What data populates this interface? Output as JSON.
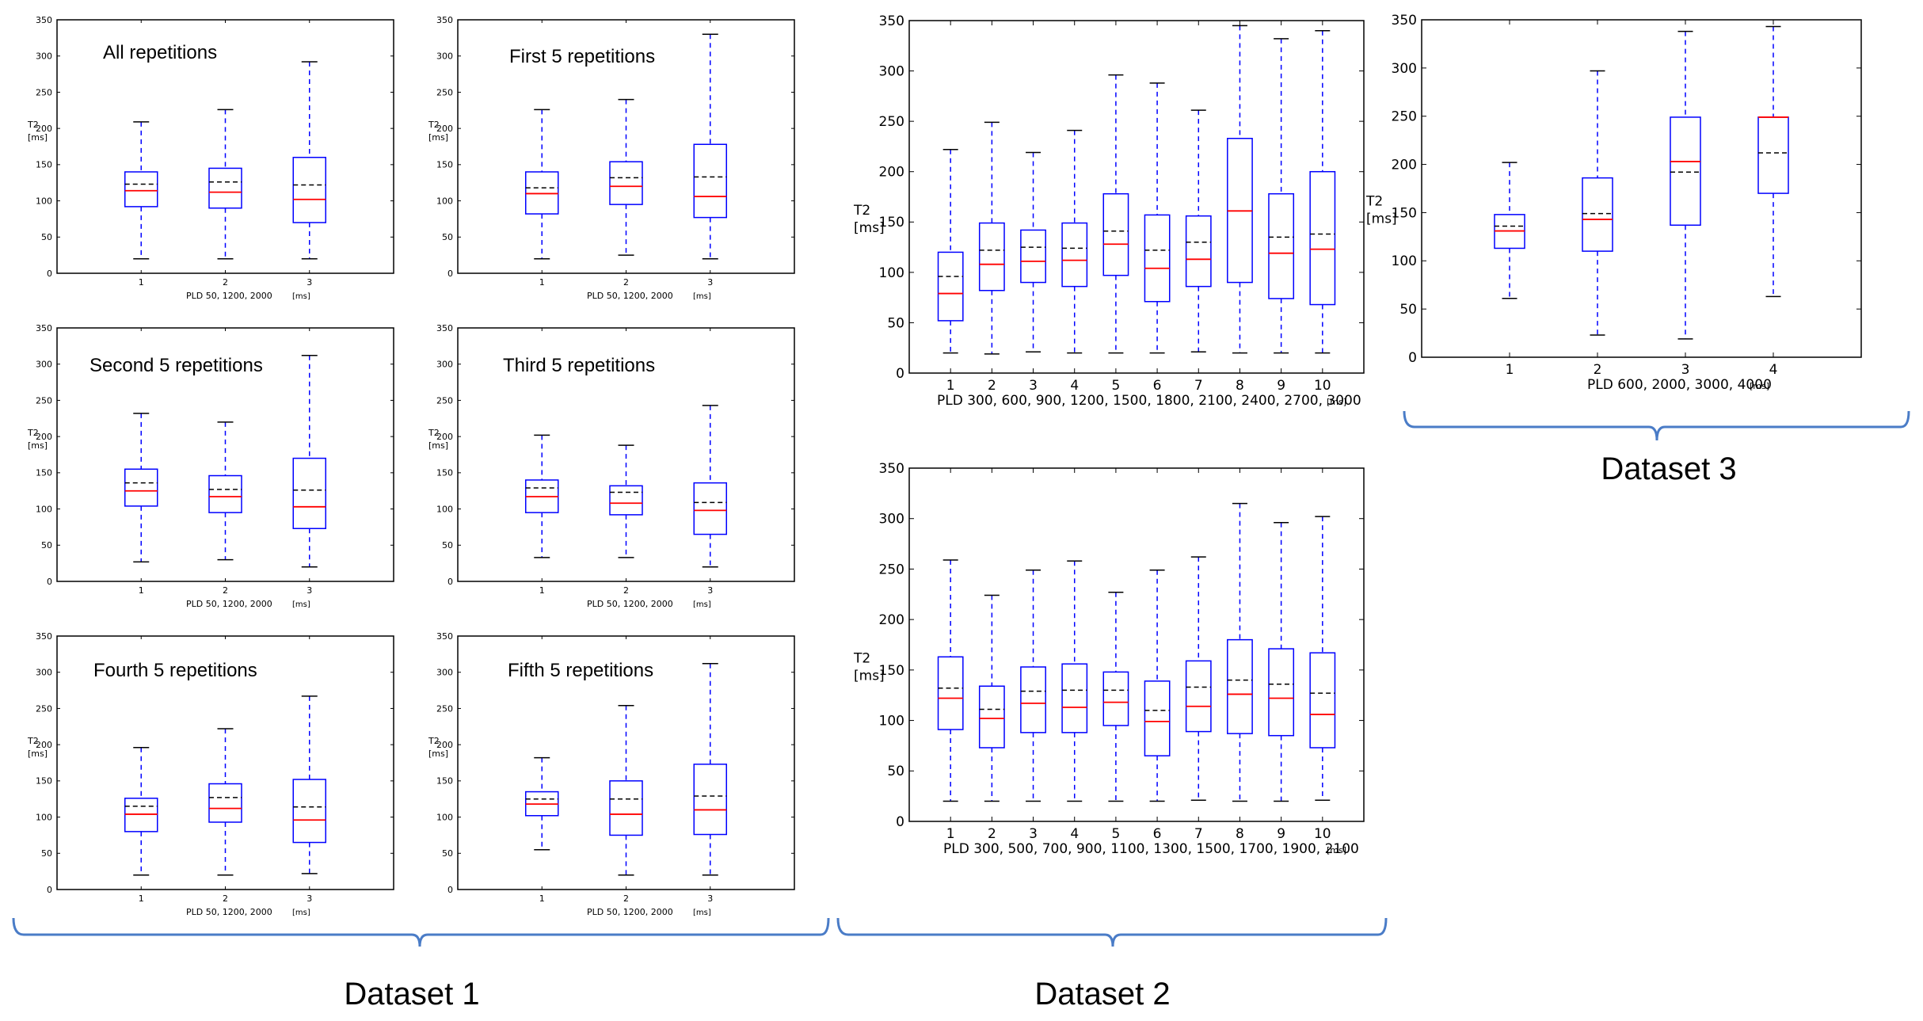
{
  "colors": {
    "box": "#0000ff",
    "whisker": "#0000ff",
    "median": "#ff0000",
    "mean": "#000000",
    "brace": "#4a7cc7",
    "frame": "#000000"
  },
  "dataset_labels": [
    "Dataset 1",
    "Dataset 2",
    "Dataset 3"
  ],
  "chart_data": [
    {
      "id": "d1-all",
      "type": "box",
      "title": "All repetitions",
      "ylabel_line1": "T2",
      "ylabel_line2": "[ms]",
      "xlabel": "PLD 50, 1200, 2000",
      "xunit": "[ms]",
      "ylim": [
        0,
        350
      ],
      "yticks": [
        "0",
        "50",
        "100",
        "150",
        "200",
        "250",
        "300",
        "350"
      ],
      "categories": [
        "1",
        "2",
        "3"
      ],
      "boxes": [
        {
          "low": 20,
          "q1": 92,
          "median": 114,
          "mean": 123,
          "q3": 140,
          "high": 209
        },
        {
          "low": 20,
          "q1": 90,
          "median": 112,
          "mean": 126,
          "q3": 145,
          "high": 226
        },
        {
          "low": 20,
          "q1": 70,
          "median": 102,
          "mean": 122,
          "q3": 160,
          "high": 292
        }
      ]
    },
    {
      "id": "d1-first",
      "type": "box",
      "title": "First 5 repetitions",
      "ylabel_line1": "T2",
      "ylabel_line2": "[ms]",
      "xlabel": "PLD 50, 1200, 2000",
      "xunit": "[ms]",
      "ylim": [
        0,
        350
      ],
      "yticks": [
        "0",
        "50",
        "100",
        "150",
        "200",
        "250",
        "300",
        "350"
      ],
      "categories": [
        "1",
        "2",
        "3"
      ],
      "boxes": [
        {
          "low": 20,
          "q1": 82,
          "median": 110,
          "mean": 118,
          "q3": 140,
          "high": 226
        },
        {
          "low": 25,
          "q1": 95,
          "median": 120,
          "mean": 132,
          "q3": 154,
          "high": 240
        },
        {
          "low": 20,
          "q1": 77,
          "median": 106,
          "mean": 133,
          "q3": 178,
          "high": 330
        }
      ]
    },
    {
      "id": "d1-second",
      "type": "box",
      "title": "Second 5 repetitions",
      "ylabel_line1": "T2",
      "ylabel_line2": "[ms]",
      "xlabel": "PLD 50, 1200, 2000",
      "xunit": "[ms]",
      "ylim": [
        0,
        350
      ],
      "yticks": [
        "0",
        "50",
        "100",
        "150",
        "200",
        "250",
        "300",
        "350"
      ],
      "categories": [
        "1",
        "2",
        "3"
      ],
      "boxes": [
        {
          "low": 27,
          "q1": 104,
          "median": 125,
          "mean": 136,
          "q3": 155,
          "high": 232
        },
        {
          "low": 30,
          "q1": 95,
          "median": 117,
          "mean": 127,
          "q3": 146,
          "high": 220
        },
        {
          "low": 20,
          "q1": 73,
          "median": 103,
          "mean": 126,
          "q3": 170,
          "high": 312
        }
      ]
    },
    {
      "id": "d1-third",
      "type": "box",
      "title": "Third 5 repetitions",
      "ylabel_line1": "T2",
      "ylabel_line2": "[ms]",
      "xlabel": "PLD 50, 1200, 2000",
      "xunit": "[ms]",
      "ylim": [
        0,
        350
      ],
      "yticks": [
        "0",
        "50",
        "100",
        "150",
        "200",
        "250",
        "300",
        "350"
      ],
      "categories": [
        "1",
        "2",
        "3"
      ],
      "boxes": [
        {
          "low": 33,
          "q1": 95,
          "median": 117,
          "mean": 129,
          "q3": 140,
          "high": 202
        },
        {
          "low": 33,
          "q1": 92,
          "median": 108,
          "mean": 123,
          "q3": 132,
          "high": 188
        },
        {
          "low": 20,
          "q1": 65,
          "median": 98,
          "mean": 109,
          "q3": 136,
          "high": 243
        }
      ]
    },
    {
      "id": "d1-fourth",
      "type": "box",
      "title": "Fourth 5 repetitions",
      "ylabel_line1": "T2",
      "ylabel_line2": "[ms]",
      "xlabel": "PLD 50, 1200, 2000",
      "xunit": "[ms]",
      "ylim": [
        0,
        350
      ],
      "yticks": [
        "0",
        "50",
        "100",
        "150",
        "200",
        "250",
        "300",
        "350"
      ],
      "categories": [
        "1",
        "2",
        "3"
      ],
      "boxes": [
        {
          "low": 20,
          "q1": 80,
          "median": 104,
          "mean": 115,
          "q3": 126,
          "high": 196
        },
        {
          "low": 20,
          "q1": 93,
          "median": 112,
          "mean": 127,
          "q3": 146,
          "high": 222
        },
        {
          "low": 22,
          "q1": 65,
          "median": 96,
          "mean": 114,
          "q3": 152,
          "high": 267
        }
      ]
    },
    {
      "id": "d1-fifth",
      "type": "box",
      "title": "Fifth 5 repetitions",
      "ylabel_line1": "T2",
      "ylabel_line2": "[ms]",
      "xlabel": "PLD 50, 1200, 2000",
      "xunit": "[ms]",
      "ylim": [
        0,
        350
      ],
      "yticks": [
        "0",
        "50",
        "100",
        "150",
        "200",
        "250",
        "300",
        "350"
      ],
      "categories": [
        "1",
        "2",
        "3"
      ],
      "boxes": [
        {
          "low": 55,
          "q1": 102,
          "median": 118,
          "mean": 125,
          "q3": 135,
          "high": 182
        },
        {
          "low": 20,
          "q1": 75,
          "median": 104,
          "mean": 125,
          "q3": 150,
          "high": 254
        },
        {
          "low": 20,
          "q1": 76,
          "median": 110,
          "mean": 129,
          "q3": 173,
          "high": 312
        }
      ]
    },
    {
      "id": "d2-top",
      "type": "box",
      "title": "",
      "ylabel_line1": "T2",
      "ylabel_line2": "[ms]",
      "xlabel": "PLD 300, 600, 900, 1200, 1500, 1800, 2100, 2400, 2700, 3000",
      "xunit": "[ms]",
      "ylim": [
        0,
        350
      ],
      "yticks": [
        "0",
        "50",
        "100",
        "150",
        "200",
        "250",
        "300",
        "350"
      ],
      "categories": [
        "1",
        "2",
        "3",
        "4",
        "5",
        "6",
        "7",
        "8",
        "9",
        "10"
      ],
      "boxes": [
        {
          "low": 20,
          "q1": 52,
          "median": 79,
          "mean": 96,
          "q3": 120,
          "high": 222
        },
        {
          "low": 19,
          "q1": 82,
          "median": 108,
          "mean": 122,
          "q3": 149,
          "high": 249
        },
        {
          "low": 21,
          "q1": 90,
          "median": 111,
          "mean": 125,
          "q3": 142,
          "high": 219
        },
        {
          "low": 20,
          "q1": 86,
          "median": 112,
          "mean": 124,
          "q3": 149,
          "high": 241
        },
        {
          "low": 20,
          "q1": 97,
          "median": 128,
          "mean": 141,
          "q3": 178,
          "high": 296
        },
        {
          "low": 20,
          "q1": 71,
          "median": 104,
          "mean": 122,
          "q3": 157,
          "high": 288
        },
        {
          "low": 21,
          "q1": 86,
          "median": 113,
          "mean": 130,
          "q3": 156,
          "high": 261
        },
        {
          "low": 20,
          "q1": 90,
          "median": 161,
          "mean": 161,
          "q3": 233,
          "high": 345
        },
        {
          "low": 20,
          "q1": 74,
          "median": 119,
          "mean": 135,
          "q3": 178,
          "high": 332
        },
        {
          "low": 20,
          "q1": 68,
          "median": 123,
          "mean": 138,
          "q3": 200,
          "high": 340
        }
      ]
    },
    {
      "id": "d2-bottom",
      "type": "box",
      "title": "",
      "ylabel_line1": "T2",
      "ylabel_line2": "[ms]",
      "xlabel": "PLD 300, 500, 700, 900, 1100, 1300, 1500, 1700, 1900, 2100",
      "xunit": "[ms]",
      "ylim": [
        0,
        350
      ],
      "yticks": [
        "0",
        "50",
        "100",
        "150",
        "200",
        "250",
        "300",
        "350"
      ],
      "categories": [
        "1",
        "2",
        "3",
        "4",
        "5",
        "6",
        "7",
        "8",
        "9",
        "10"
      ],
      "boxes": [
        {
          "low": 20,
          "q1": 91,
          "median": 122,
          "mean": 132,
          "q3": 163,
          "high": 259
        },
        {
          "low": 20,
          "q1": 73,
          "median": 102,
          "mean": 111,
          "q3": 134,
          "high": 224
        },
        {
          "low": 20,
          "q1": 88,
          "median": 117,
          "mean": 129,
          "q3": 153,
          "high": 249
        },
        {
          "low": 20,
          "q1": 88,
          "median": 113,
          "mean": 130,
          "q3": 156,
          "high": 258
        },
        {
          "low": 20,
          "q1": 95,
          "median": 118,
          "mean": 130,
          "q3": 148,
          "high": 227
        },
        {
          "low": 20,
          "q1": 65,
          "median": 99,
          "mean": 110,
          "q3": 139,
          "high": 249
        },
        {
          "low": 21,
          "q1": 89,
          "median": 114,
          "mean": 133,
          "q3": 159,
          "high": 262
        },
        {
          "low": 20,
          "q1": 87,
          "median": 126,
          "mean": 140,
          "q3": 180,
          "high": 315
        },
        {
          "low": 20,
          "q1": 85,
          "median": 122,
          "mean": 136,
          "q3": 171,
          "high": 296
        },
        {
          "low": 21,
          "q1": 73,
          "median": 106,
          "mean": 127,
          "q3": 167,
          "high": 302
        }
      ]
    },
    {
      "id": "d3",
      "type": "box",
      "title": "",
      "ylabel_line1": "T2",
      "ylabel_line2": "[ms]",
      "xlabel": "PLD 600, 2000, 3000, 4000",
      "xunit": "[ms]",
      "ylim": [
        0,
        350
      ],
      "yticks": [
        "0",
        "50",
        "100",
        "150",
        "200",
        "250",
        "300",
        "350"
      ],
      "categories": [
        "1",
        "2",
        "3",
        "4"
      ],
      "boxes": [
        {
          "low": 61,
          "q1": 113,
          "median": 131,
          "mean": 136,
          "q3": 148,
          "high": 202
        },
        {
          "low": 23,
          "q1": 110,
          "median": 143,
          "mean": 149,
          "q3": 186,
          "high": 297
        },
        {
          "low": 19,
          "q1": 137,
          "median": 203,
          "mean": 192,
          "q3": 249,
          "high": 338
        },
        {
          "low": 63,
          "q1": 170,
          "median": 249,
          "mean": 212,
          "q3": 249,
          "high": 343
        }
      ]
    }
  ]
}
